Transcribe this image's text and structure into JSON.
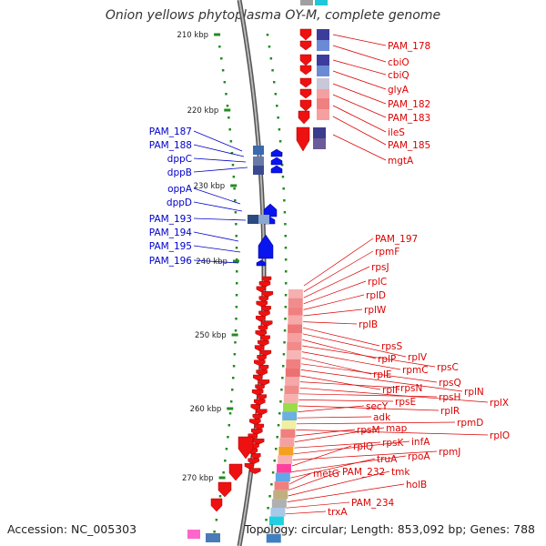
{
  "title": "Onion yellows phytoplasma OY-M, complete genome",
  "footer": {
    "accession": "Accession: NC_005303",
    "topology": "Topology: circular; Length: 853,092 bp; Genes: 788"
  },
  "colors": {
    "backbone": "#8c8c8c",
    "forward_label": "#0000cc",
    "reverse_label": "#dd0000",
    "tick": "#228b22",
    "gc_bar_dark": "#3c3c8c",
    "gc_bar_light": "#f08080"
  },
  "scale_labels": [
    "210 kbp",
    "220 kbp",
    "230 kbp",
    "240 kbp",
    "250 kbp",
    "260 kbp",
    "270 kbp"
  ],
  "forward_genes": [
    "PAM_187",
    "PAM_188",
    "dppC",
    "dppB",
    "oppA",
    "dppD",
    "PAM_193",
    "PAM_194",
    "PAM_195",
    "PAM_196"
  ],
  "reverse_genes_upper": [
    "PAM_178",
    "cbiO",
    "cbiQ",
    "glyA",
    "PAM_182",
    "PAM_183",
    "ileS",
    "PAM_185",
    "mgtA"
  ],
  "reverse_genes_lower": [
    "PAM_197",
    "rpmF",
    "rpsJ",
    "rplC",
    "rplD",
    "rplW",
    "rplB",
    "rpsS",
    "rplV",
    "rplP",
    "rpsC",
    "rpmC",
    "rplE",
    "rpsQ",
    "rplN",
    "rplF",
    "rpsN",
    "rplX",
    "rpsH",
    "rpsE",
    "rplR",
    "secY",
    "adk",
    "rpmD",
    "rplO",
    "rpsM",
    "map",
    "rpsK",
    "infA",
    "rpmJ",
    "rplQ",
    "rpoA",
    "truA",
    "metG",
    "PAM_232",
    "tmk",
    "holB",
    "PAM_234",
    "trxA"
  ]
}
